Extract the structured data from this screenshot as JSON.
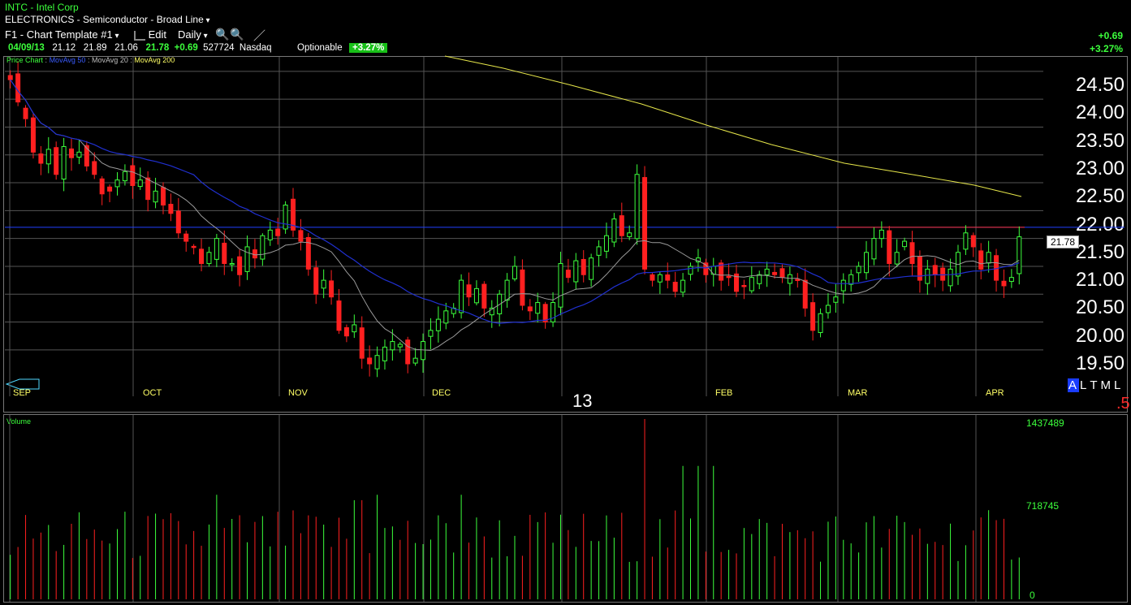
{
  "header": {
    "title": "INTC - Intel Corp",
    "sector": "ELECTRONICS - Semiconductor - Broad Line",
    "template": "F1 - Chart Template #1",
    "edit_label": "Edit",
    "period": "Daily",
    "change_abs": "+0.69",
    "change_pct": "+3.27%"
  },
  "quote": {
    "date": "04/09/13",
    "open": "21.12",
    "high": "21.89",
    "low": "21.06",
    "close": "21.78",
    "change": "+0.69",
    "volume": "527724",
    "exchange": "Nasdaq",
    "optionable": "Optionable",
    "pct_badge": "+3.27%"
  },
  "legend": {
    "price": "Price Chart",
    "ma50": "MovAvg 50",
    "ma20": "MovAvg 20",
    "ma200": "MovAvg 200",
    "sep": ":"
  },
  "price_axis": {
    "labels": [
      "24.50",
      "24.00",
      "23.50",
      "23.00",
      "22.50",
      "22.00",
      "21.50",
      "21.00",
      "20.50",
      "20.00",
      "19.50"
    ],
    "last_price_tag": "21.78",
    "hline_price": 21.95
  },
  "months": [
    "SEP",
    "OCT",
    "NOV",
    "DEC",
    "FEB",
    "MAR",
    "APR"
  ],
  "year_marker": "13",
  "timeframe_tabs": [
    "A",
    "L",
    "T",
    "M",
    "L"
  ],
  "timeframe_selected": 0,
  "indicator_value": ".5",
  "volume_panel": {
    "label": "Volume",
    "max": "1437489",
    "mid": "718745",
    "zero": "0"
  },
  "colors": {
    "up": "#3cff3c",
    "down": "#ff2020",
    "ma20": "#9a9a9a",
    "ma50": "#2030d0",
    "ma200": "#e6e64a",
    "hline": "#2040ff",
    "grid": "#555555"
  },
  "chart_data": {
    "type": "candlestick",
    "symbol": "INTC",
    "ylim": [
      19.2,
      25.0
    ],
    "closes": [
      24.6,
      24.2,
      23.9,
      23.3,
      23.1,
      23.35,
      22.9,
      23.4,
      23.2,
      23.3,
      23.05,
      22.9,
      22.55,
      22.6,
      22.8,
      22.95,
      22.7,
      22.8,
      22.45,
      22.6,
      22.35,
      22.2,
      21.85,
      21.7,
      21.6,
      21.3,
      21.5,
      21.75,
      21.3,
      21.3,
      21.1,
      21.6,
      21.4,
      21.8,
      21.9,
      21.8,
      22.35,
      21.9,
      21.7,
      21.2,
      20.75,
      21.0,
      20.7,
      20.1,
      20.0,
      20.2,
      19.6,
      19.5,
      19.65,
      19.8,
      19.9,
      19.85,
      19.5,
      19.6,
      19.9,
      20.1,
      20.3,
      20.45,
      20.5,
      21.0,
      20.7,
      20.85,
      20.5,
      20.5,
      20.75,
      21.0,
      21.25,
      20.55,
      20.45,
      20.6,
      20.25,
      20.6,
      21.3,
      21.05,
      21.35,
      21.1,
      21.4,
      21.6,
      21.8,
      22.1,
      21.8,
      21.85,
      22.9,
      21.2,
      21.0,
      21.1,
      21.0,
      20.8,
      21.0,
      21.25,
      21.4,
      21.1,
      21.25,
      21.0,
      21.05,
      20.8,
      20.9,
      21.05,
      21.1,
      21.2,
      21.1,
      21.05,
      21.1,
      21.0,
      20.5,
      20.1,
      20.4,
      20.55,
      20.7,
      21.0,
      21.1,
      21.25,
      21.5,
      21.75,
      21.9,
      21.3,
      21.5,
      21.7,
      21.3,
      21.0,
      21.2,
      21.1,
      21.0,
      21.2,
      21.5,
      21.85,
      21.6,
      21.2,
      21.5,
      21.0,
      20.9,
      21.05,
      21.78
    ]
  }
}
